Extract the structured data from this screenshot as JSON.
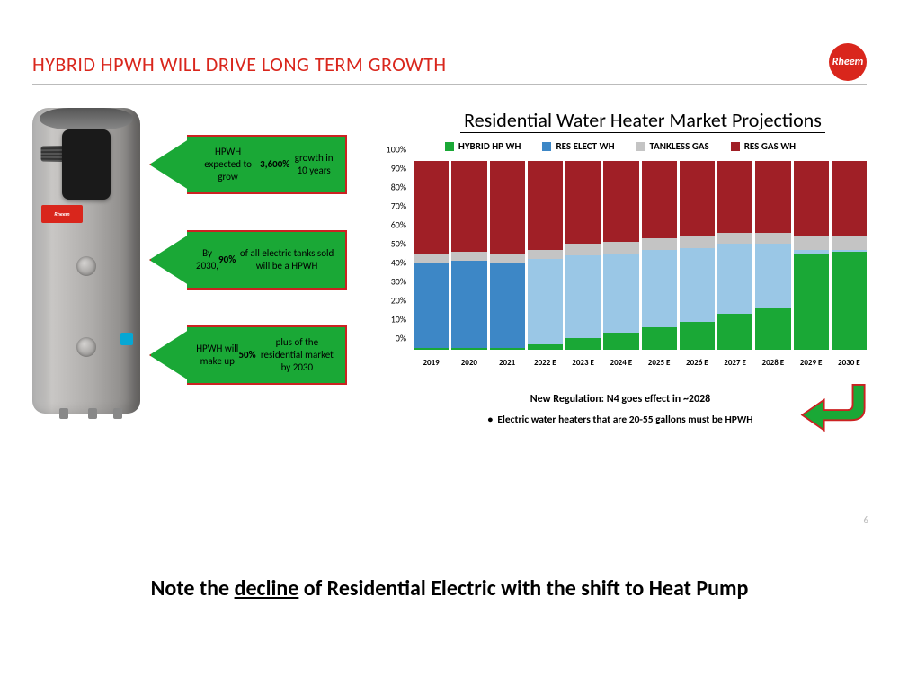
{
  "header": {
    "title": "HYBRID HPWH WILL DRIVE LONG TERM GROWTH",
    "logo_text": "Rheem",
    "title_color": "#d9261c"
  },
  "callouts": [
    {
      "html": "HPWH expected to grow <b>3,600%</b> growth in 10 years"
    },
    {
      "html": "By 2030, <b>90%</b> of all electric tanks sold will be a HPWH"
    },
    {
      "html": "HPWH will make up <b>50%</b> plus of the residential market by 2030"
    }
  ],
  "chart": {
    "title": "Residential Water Heater Market Projections",
    "type": "stacked-bar-100",
    "legend": [
      {
        "label": "HYBRID HP WH",
        "color": "#1aa836"
      },
      {
        "label": "RES ELECT WH",
        "color": "#3d87c6"
      },
      {
        "label": "TANKLESS GAS",
        "color": "#c4c4c4"
      },
      {
        "label": "RES GAS WH",
        "color": "#a01f26"
      }
    ],
    "res_elect_light_color": "#9ac7e6",
    "ylim": [
      0,
      100
    ],
    "ytick_step": 10,
    "ytick_suffix": "%",
    "background_color": "#ffffff",
    "categories": [
      "2019",
      "2020",
      "2021",
      "2022 E",
      "2023 E",
      "2024 E",
      "2025 E",
      "2026 E",
      "2027 E",
      "2028 E",
      "2029 E",
      "2030 E"
    ],
    "series": {
      "hybrid": [
        1,
        1,
        1,
        3,
        6,
        9,
        12,
        15,
        19,
        22,
        51,
        52
      ],
      "res_elect": [
        45,
        46,
        45,
        45,
        44,
        42,
        41,
        39,
        37,
        34,
        2,
        1
      ],
      "tankless": [
        5,
        5,
        5,
        5,
        6,
        6,
        6,
        6,
        6,
        6,
        7,
        7
      ],
      "res_gas": [
        49,
        48,
        49,
        47,
        44,
        43,
        41,
        40,
        38,
        38,
        40,
        40
      ]
    },
    "res_elect_dark_cutoff_index": 3,
    "notes": {
      "line1": "New Regulation: N4 goes effect in ~2028",
      "line2": "Electric water heaters that are 20-55 gallons must be HPWH"
    },
    "bent_arrow_color": "#1aa836",
    "bent_arrow_border": "#cc2222"
  },
  "page_number": "6",
  "footer": {
    "prefix": "Note the ",
    "underlined": "decline",
    "suffix": " of Residential Electric with the shift to Heat Pump"
  }
}
